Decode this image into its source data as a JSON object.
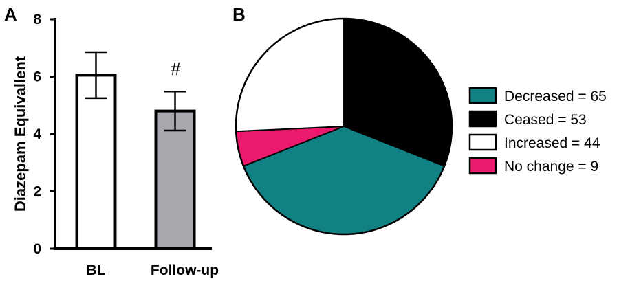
{
  "chart_data": [
    {
      "panel": "A",
      "type": "bar",
      "categories": [
        "BL",
        "Follow-up"
      ],
      "values": [
        6.05,
        4.8
      ],
      "error": [
        0.8,
        0.68
      ],
      "bar_colors": [
        "#ffffff",
        "#a7a7ae"
      ],
      "ylabel": "Diazepam Equivallent",
      "ylim": [
        0,
        8
      ],
      "yticks": [
        "0",
        "2",
        "4",
        "6",
        "8"
      ],
      "annotations": [
        {
          "category": "Follow-up",
          "text": "#"
        }
      ],
      "grid": false
    },
    {
      "panel": "B",
      "type": "pie",
      "slices": [
        {
          "label": "Decreased = 65",
          "value": 65,
          "color": "#118184"
        },
        {
          "label": "Ceased = 53",
          "value": 53,
          "color": "#000000"
        },
        {
          "label": "Increased = 44",
          "value": 44,
          "color": "#ffffff"
        },
        {
          "label": "No change = 9",
          "value": 9,
          "color": "#eb1a6e"
        }
      ],
      "legend_position": "right"
    }
  ]
}
